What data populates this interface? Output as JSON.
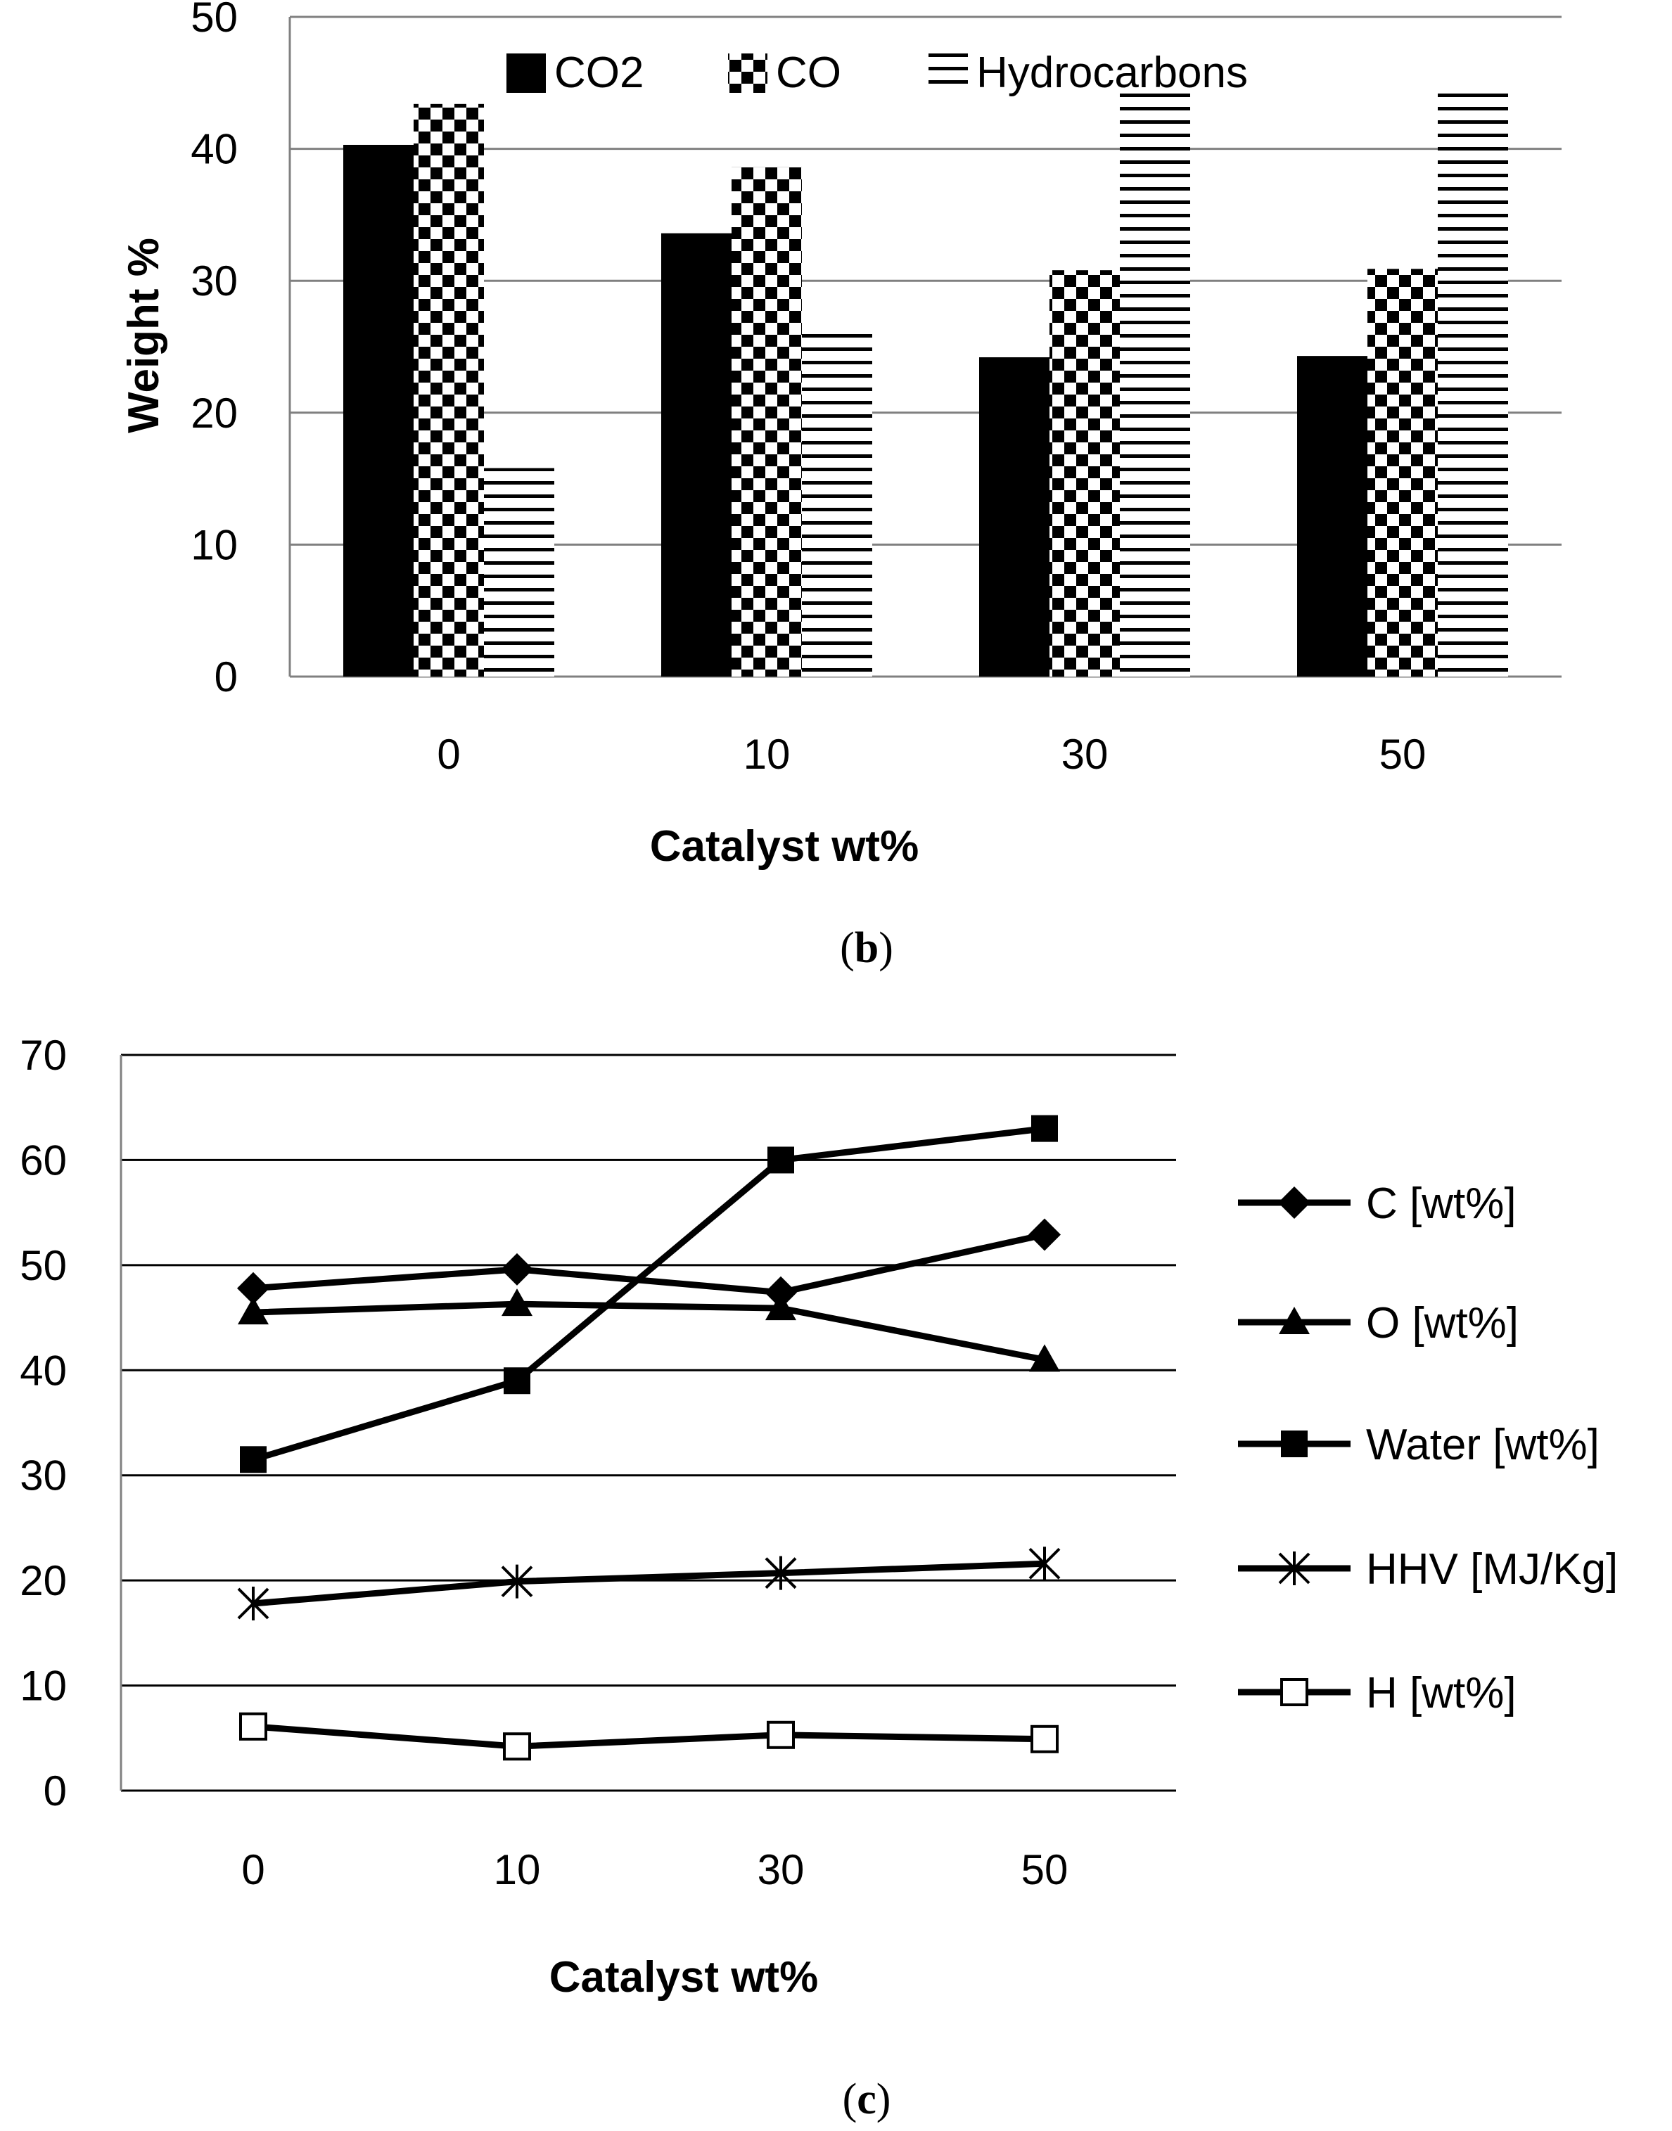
{
  "chart_data": [
    {
      "type": "bar",
      "panel_label": "b",
      "title": "",
      "xlabel": "Catalyst wt%",
      "ylabel": "Weight %",
      "categories": [
        "0",
        "10",
        "30",
        "50"
      ],
      "ylim": [
        0,
        50
      ],
      "yticks": [
        "0",
        "10",
        "20",
        "30",
        "40",
        "50"
      ],
      "grid": true,
      "legend_position": "top",
      "series": [
        {
          "name": "CO2",
          "pattern": "solid",
          "values": [
            40.3,
            33.6,
            24.2,
            24.3
          ]
        },
        {
          "name": "CO",
          "pattern": "checker",
          "values": [
            43.4,
            38.6,
            30.8,
            30.9
          ]
        },
        {
          "name": "Hydrocarbons",
          "pattern": "hlines",
          "values": [
            15.8,
            26.6,
            44.4,
            44.4
          ]
        }
      ]
    },
    {
      "type": "line",
      "panel_label": "c",
      "title": "",
      "xlabel": "Catalyst wt%",
      "ylabel": "",
      "categories": [
        "0",
        "10",
        "30",
        "50"
      ],
      "ylim": [
        0,
        70
      ],
      "yticks": [
        "0",
        "10",
        "20",
        "30",
        "40",
        "50",
        "60",
        "70"
      ],
      "grid": true,
      "legend_position": "right",
      "series": [
        {
          "name": "C [wt%]",
          "marker": "diamond",
          "values": [
            47.8,
            49.6,
            47.4,
            52.9
          ]
        },
        {
          "name": "O [wt%]",
          "marker": "triangle",
          "values": [
            45.5,
            46.3,
            45.9,
            41.0
          ]
        },
        {
          "name": "Water [wt%]",
          "marker": "square",
          "values": [
            31.5,
            39.0,
            60.0,
            63.0
          ]
        },
        {
          "name": "HHV [MJ/Kg]",
          "marker": "asterisk",
          "values": [
            17.8,
            19.9,
            20.7,
            21.6
          ]
        },
        {
          "name": "H [wt%]",
          "marker": "open-square",
          "values": [
            6.1,
            4.2,
            5.3,
            4.9
          ]
        }
      ]
    }
  ],
  "colors": {
    "ink": "#000000",
    "grid": "#808080",
    "background": "#ffffff"
  }
}
